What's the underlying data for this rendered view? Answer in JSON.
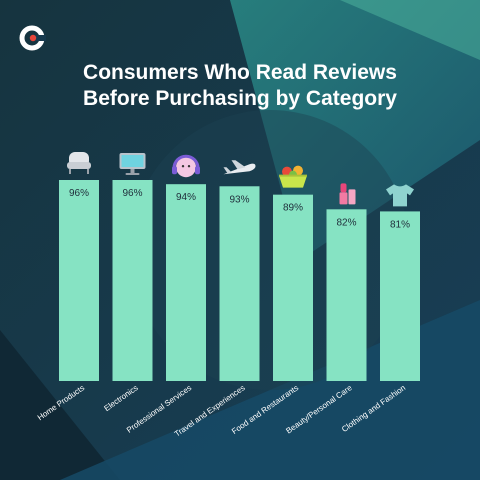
{
  "brand": {
    "logo_icon": "c-logo-icon",
    "logo_color": "#e8463a"
  },
  "title_lines": [
    "Consumers Who Read Reviews",
    "Before Purchasing by Category"
  ],
  "colors": {
    "bar": "#86e3c3",
    "background": "#173a4e",
    "value_text": "#1f2d3a",
    "label_text": "#ffffff"
  },
  "chart_data": {
    "type": "bar",
    "title": "Consumers Who Read Reviews Before Purchasing by Category",
    "categories": [
      "Home Products",
      "Electronics",
      "Professional Services",
      "Travel and Experiences",
      "Food and Restaurants",
      "Beauty/Personal Care",
      "Clothing and Fashion"
    ],
    "values": [
      96,
      96,
      94,
      93,
      89,
      82,
      81
    ],
    "value_labels": [
      "96%",
      "96%",
      "94%",
      "93%",
      "89%",
      "82%",
      "81%"
    ],
    "icons": [
      "armchair-icon",
      "monitor-icon",
      "headset-icon",
      "airplane-icon",
      "food-basket-icon",
      "lipstick-icon",
      "tshirt-icon"
    ],
    "ylim": [
      0,
      96
    ],
    "grid": false,
    "legend": "none"
  }
}
